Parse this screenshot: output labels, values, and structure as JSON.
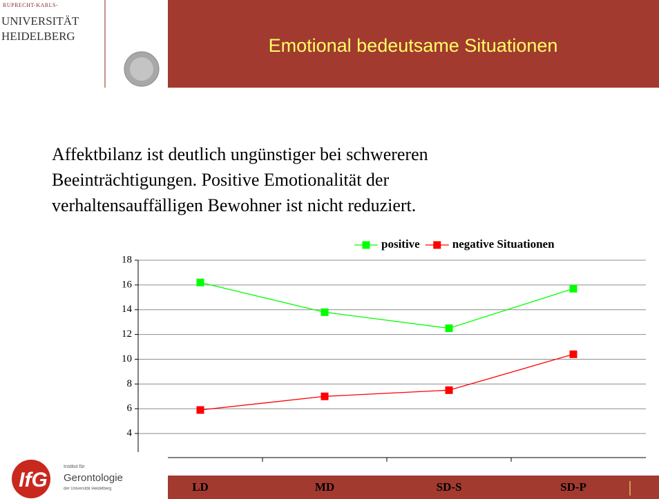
{
  "header": {
    "university": [
      "RUPRECHT-KARLS-",
      "UNIVERSITÄT",
      "HEIDELBERG"
    ],
    "title": "Emotional bedeutsame Situationen"
  },
  "body": [
    "Affektbilanz ist deutlich ungünstiger bei schwereren",
    "Beeinträchtigungen. Positive Emotionalität der",
    "verhaltensauffälligen Bewohner ist nicht reduziert."
  ],
  "footer": {
    "logo": "IfG",
    "institute": [
      "Institut für",
      "Gerontologie",
      "der Universität Heidelberg"
    ]
  },
  "chart_data": {
    "type": "line",
    "categories": [
      "LD",
      "MD",
      "SD-S",
      "SD-P"
    ],
    "series": [
      {
        "name": "positive",
        "color": "#00ff00",
        "values": [
          16.2,
          13.8,
          12.5,
          15.7
        ]
      },
      {
        "name": "negative Situationen",
        "color": "#ff0000",
        "values": [
          5.9,
          7.0,
          7.5,
          10.4
        ]
      }
    ],
    "ylim": [
      2.5,
      18
    ],
    "yticks": [
      4,
      6,
      8,
      10,
      12,
      14,
      16,
      18
    ],
    "grid": true,
    "legend": "top-right"
  }
}
